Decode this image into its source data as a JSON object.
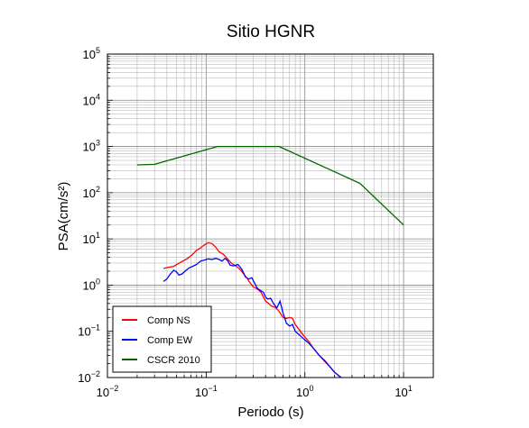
{
  "chart_data": {
    "type": "line",
    "title": "Sitio HGNR",
    "xlabel": "Periodo (s)",
    "ylabel": "PSA(cm/s²)",
    "x_scale": "log",
    "y_scale": "log",
    "xlim": [
      0.01,
      20
    ],
    "ylim": [
      0.01,
      100000
    ],
    "grid": true,
    "legend_position": "bottom-left",
    "x_ticks": [
      {
        "base": "10",
        "exp": "−2",
        "value": 0.01
      },
      {
        "base": "10",
        "exp": "−1",
        "value": 0.1
      },
      {
        "base": "10",
        "exp": "0",
        "value": 1
      },
      {
        "base": "10",
        "exp": "1",
        "value": 10
      }
    ],
    "y_ticks": [
      {
        "base": "10",
        "exp": "−2",
        "value": 0.01
      },
      {
        "base": "10",
        "exp": "−1",
        "value": 0.1
      },
      {
        "base": "10",
        "exp": "0",
        "value": 1
      },
      {
        "base": "10",
        "exp": "1",
        "value": 10
      },
      {
        "base": "10",
        "exp": "2",
        "value": 100
      },
      {
        "base": "10",
        "exp": "3",
        "value": 1000
      },
      {
        "base": "10",
        "exp": "4",
        "value": 10000
      },
      {
        "base": "10",
        "exp": "5",
        "value": 100000
      }
    ],
    "series": [
      {
        "name": "Comp NS",
        "color": "#ff0000",
        "points": [
          [
            0.037,
            2.3
          ],
          [
            0.042,
            2.45
          ],
          [
            0.047,
            2.55
          ],
          [
            0.052,
            2.9
          ],
          [
            0.058,
            3.3
          ],
          [
            0.065,
            3.8
          ],
          [
            0.072,
            4.5
          ],
          [
            0.08,
            5.7
          ],
          [
            0.088,
            6.4
          ],
          [
            0.095,
            7.3
          ],
          [
            0.105,
            8.3
          ],
          [
            0.115,
            7.9
          ],
          [
            0.125,
            6.6
          ],
          [
            0.135,
            5.3
          ],
          [
            0.15,
            4.6
          ],
          [
            0.165,
            3.7
          ],
          [
            0.18,
            3.0
          ],
          [
            0.2,
            2.6
          ],
          [
            0.22,
            2.2
          ],
          [
            0.24,
            1.75
          ],
          [
            0.26,
            1.4
          ],
          [
            0.28,
            1.1
          ],
          [
            0.3,
            0.92
          ],
          [
            0.33,
            0.82
          ],
          [
            0.36,
            0.7
          ],
          [
            0.38,
            0.55
          ],
          [
            0.4,
            0.45
          ],
          [
            0.43,
            0.4
          ],
          [
            0.46,
            0.35
          ],
          [
            0.5,
            0.33
          ],
          [
            0.55,
            0.27
          ],
          [
            0.6,
            0.2
          ],
          [
            0.65,
            0.19
          ],
          [
            0.7,
            0.2
          ],
          [
            0.75,
            0.19
          ],
          [
            0.8,
            0.14
          ],
          [
            0.9,
            0.1
          ],
          [
            1.0,
            0.075
          ],
          [
            1.1,
            0.06
          ],
          [
            1.2,
            0.045
          ],
          [
            1.4,
            0.03
          ],
          [
            1.6,
            0.022
          ],
          [
            1.8,
            0.017
          ],
          [
            2.0,
            0.013
          ],
          [
            2.2,
            0.011
          ],
          [
            2.4,
            0.0095
          ]
        ]
      },
      {
        "name": "Comp EW",
        "color": "#0000ff",
        "points": [
          [
            0.037,
            1.2
          ],
          [
            0.04,
            1.35
          ],
          [
            0.043,
            1.7
          ],
          [
            0.047,
            2.1
          ],
          [
            0.05,
            1.95
          ],
          [
            0.053,
            1.65
          ],
          [
            0.057,
            1.75
          ],
          [
            0.062,
            2.05
          ],
          [
            0.067,
            2.35
          ],
          [
            0.073,
            2.55
          ],
          [
            0.08,
            2.8
          ],
          [
            0.088,
            3.3
          ],
          [
            0.097,
            3.5
          ],
          [
            0.105,
            3.7
          ],
          [
            0.115,
            3.6
          ],
          [
            0.125,
            3.8
          ],
          [
            0.135,
            3.6
          ],
          [
            0.145,
            3.3
          ],
          [
            0.155,
            3.8
          ],
          [
            0.165,
            3.4
          ],
          [
            0.175,
            2.7
          ],
          [
            0.19,
            2.6
          ],
          [
            0.21,
            2.8
          ],
          [
            0.23,
            2.2
          ],
          [
            0.25,
            1.5
          ],
          [
            0.27,
            1.35
          ],
          [
            0.29,
            1.45
          ],
          [
            0.31,
            1.1
          ],
          [
            0.33,
            0.85
          ],
          [
            0.36,
            0.75
          ],
          [
            0.38,
            0.7
          ],
          [
            0.4,
            0.55
          ],
          [
            0.42,
            0.5
          ],
          [
            0.45,
            0.52
          ],
          [
            0.48,
            0.4
          ],
          [
            0.52,
            0.32
          ],
          [
            0.56,
            0.45
          ],
          [
            0.6,
            0.25
          ],
          [
            0.65,
            0.15
          ],
          [
            0.7,
            0.13
          ],
          [
            0.75,
            0.14
          ],
          [
            0.8,
            0.1
          ],
          [
            0.9,
            0.08
          ],
          [
            1.0,
            0.065
          ],
          [
            1.1,
            0.055
          ],
          [
            1.2,
            0.045
          ],
          [
            1.4,
            0.03
          ],
          [
            1.6,
            0.023
          ],
          [
            1.8,
            0.017
          ],
          [
            2.0,
            0.013
          ],
          [
            2.2,
            0.011
          ],
          [
            2.4,
            0.0095
          ]
        ]
      },
      {
        "name": "CSCR 2010",
        "color": "#006400",
        "points": [
          [
            0.02,
            400
          ],
          [
            0.03,
            410
          ],
          [
            0.13,
            1000
          ],
          [
            0.55,
            1000
          ],
          [
            3.6,
            160
          ],
          [
            10,
            20
          ]
        ]
      }
    ]
  }
}
